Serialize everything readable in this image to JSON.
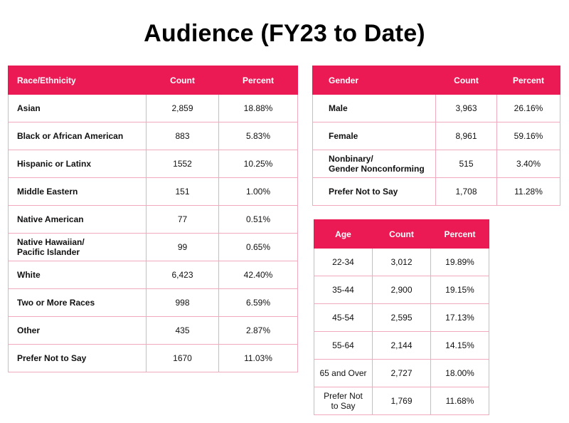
{
  "title": "Audience (FY23 to Date)",
  "colors": {
    "header_bg": "#eb1a55",
    "header_text": "#ffffff",
    "border": "#f0a9bd"
  },
  "race": {
    "headers": [
      "Race/Ethnicity",
      "Count",
      "Percent"
    ],
    "rows": [
      [
        "Asian",
        "2,859",
        "18.88%"
      ],
      [
        "Black or African American",
        "883",
        "5.83%"
      ],
      [
        "Hispanic or Latinx",
        "1552",
        "10.25%"
      ],
      [
        "Middle Eastern",
        "151",
        "1.00%"
      ],
      [
        "Native American",
        "77",
        "0.51%"
      ],
      [
        "Native Hawaiian/\nPacific Islander",
        "99",
        "0.65%"
      ],
      [
        "White",
        "6,423",
        "42.40%"
      ],
      [
        "Two or More Races",
        "998",
        "6.59%"
      ],
      [
        "Other",
        "435",
        "2.87%"
      ],
      [
        "Prefer Not to Say",
        "1670",
        "11.03%"
      ]
    ]
  },
  "gender": {
    "headers": [
      "Gender",
      "Count",
      "Percent"
    ],
    "rows": [
      [
        "Male",
        "3,963",
        "26.16%"
      ],
      [
        "Female",
        "8,961",
        "59.16%"
      ],
      [
        "Nonbinary/\nGender Nonconforming",
        "515",
        "3.40%"
      ],
      [
        "Prefer Not to Say",
        "1,708",
        "11.28%"
      ]
    ]
  },
  "age": {
    "headers": [
      "Age",
      "Count",
      "Percent"
    ],
    "rows": [
      [
        "22-34",
        "3,012",
        "19.89%"
      ],
      [
        "35-44",
        "2,900",
        "19.15%"
      ],
      [
        "45-54",
        "2,595",
        "17.13%"
      ],
      [
        "55-64",
        "2,144",
        "14.15%"
      ],
      [
        "65 and Over",
        "2,727",
        "18.00%"
      ],
      [
        "Prefer Not\nto Say",
        "1,769",
        "11.68%"
      ]
    ]
  }
}
